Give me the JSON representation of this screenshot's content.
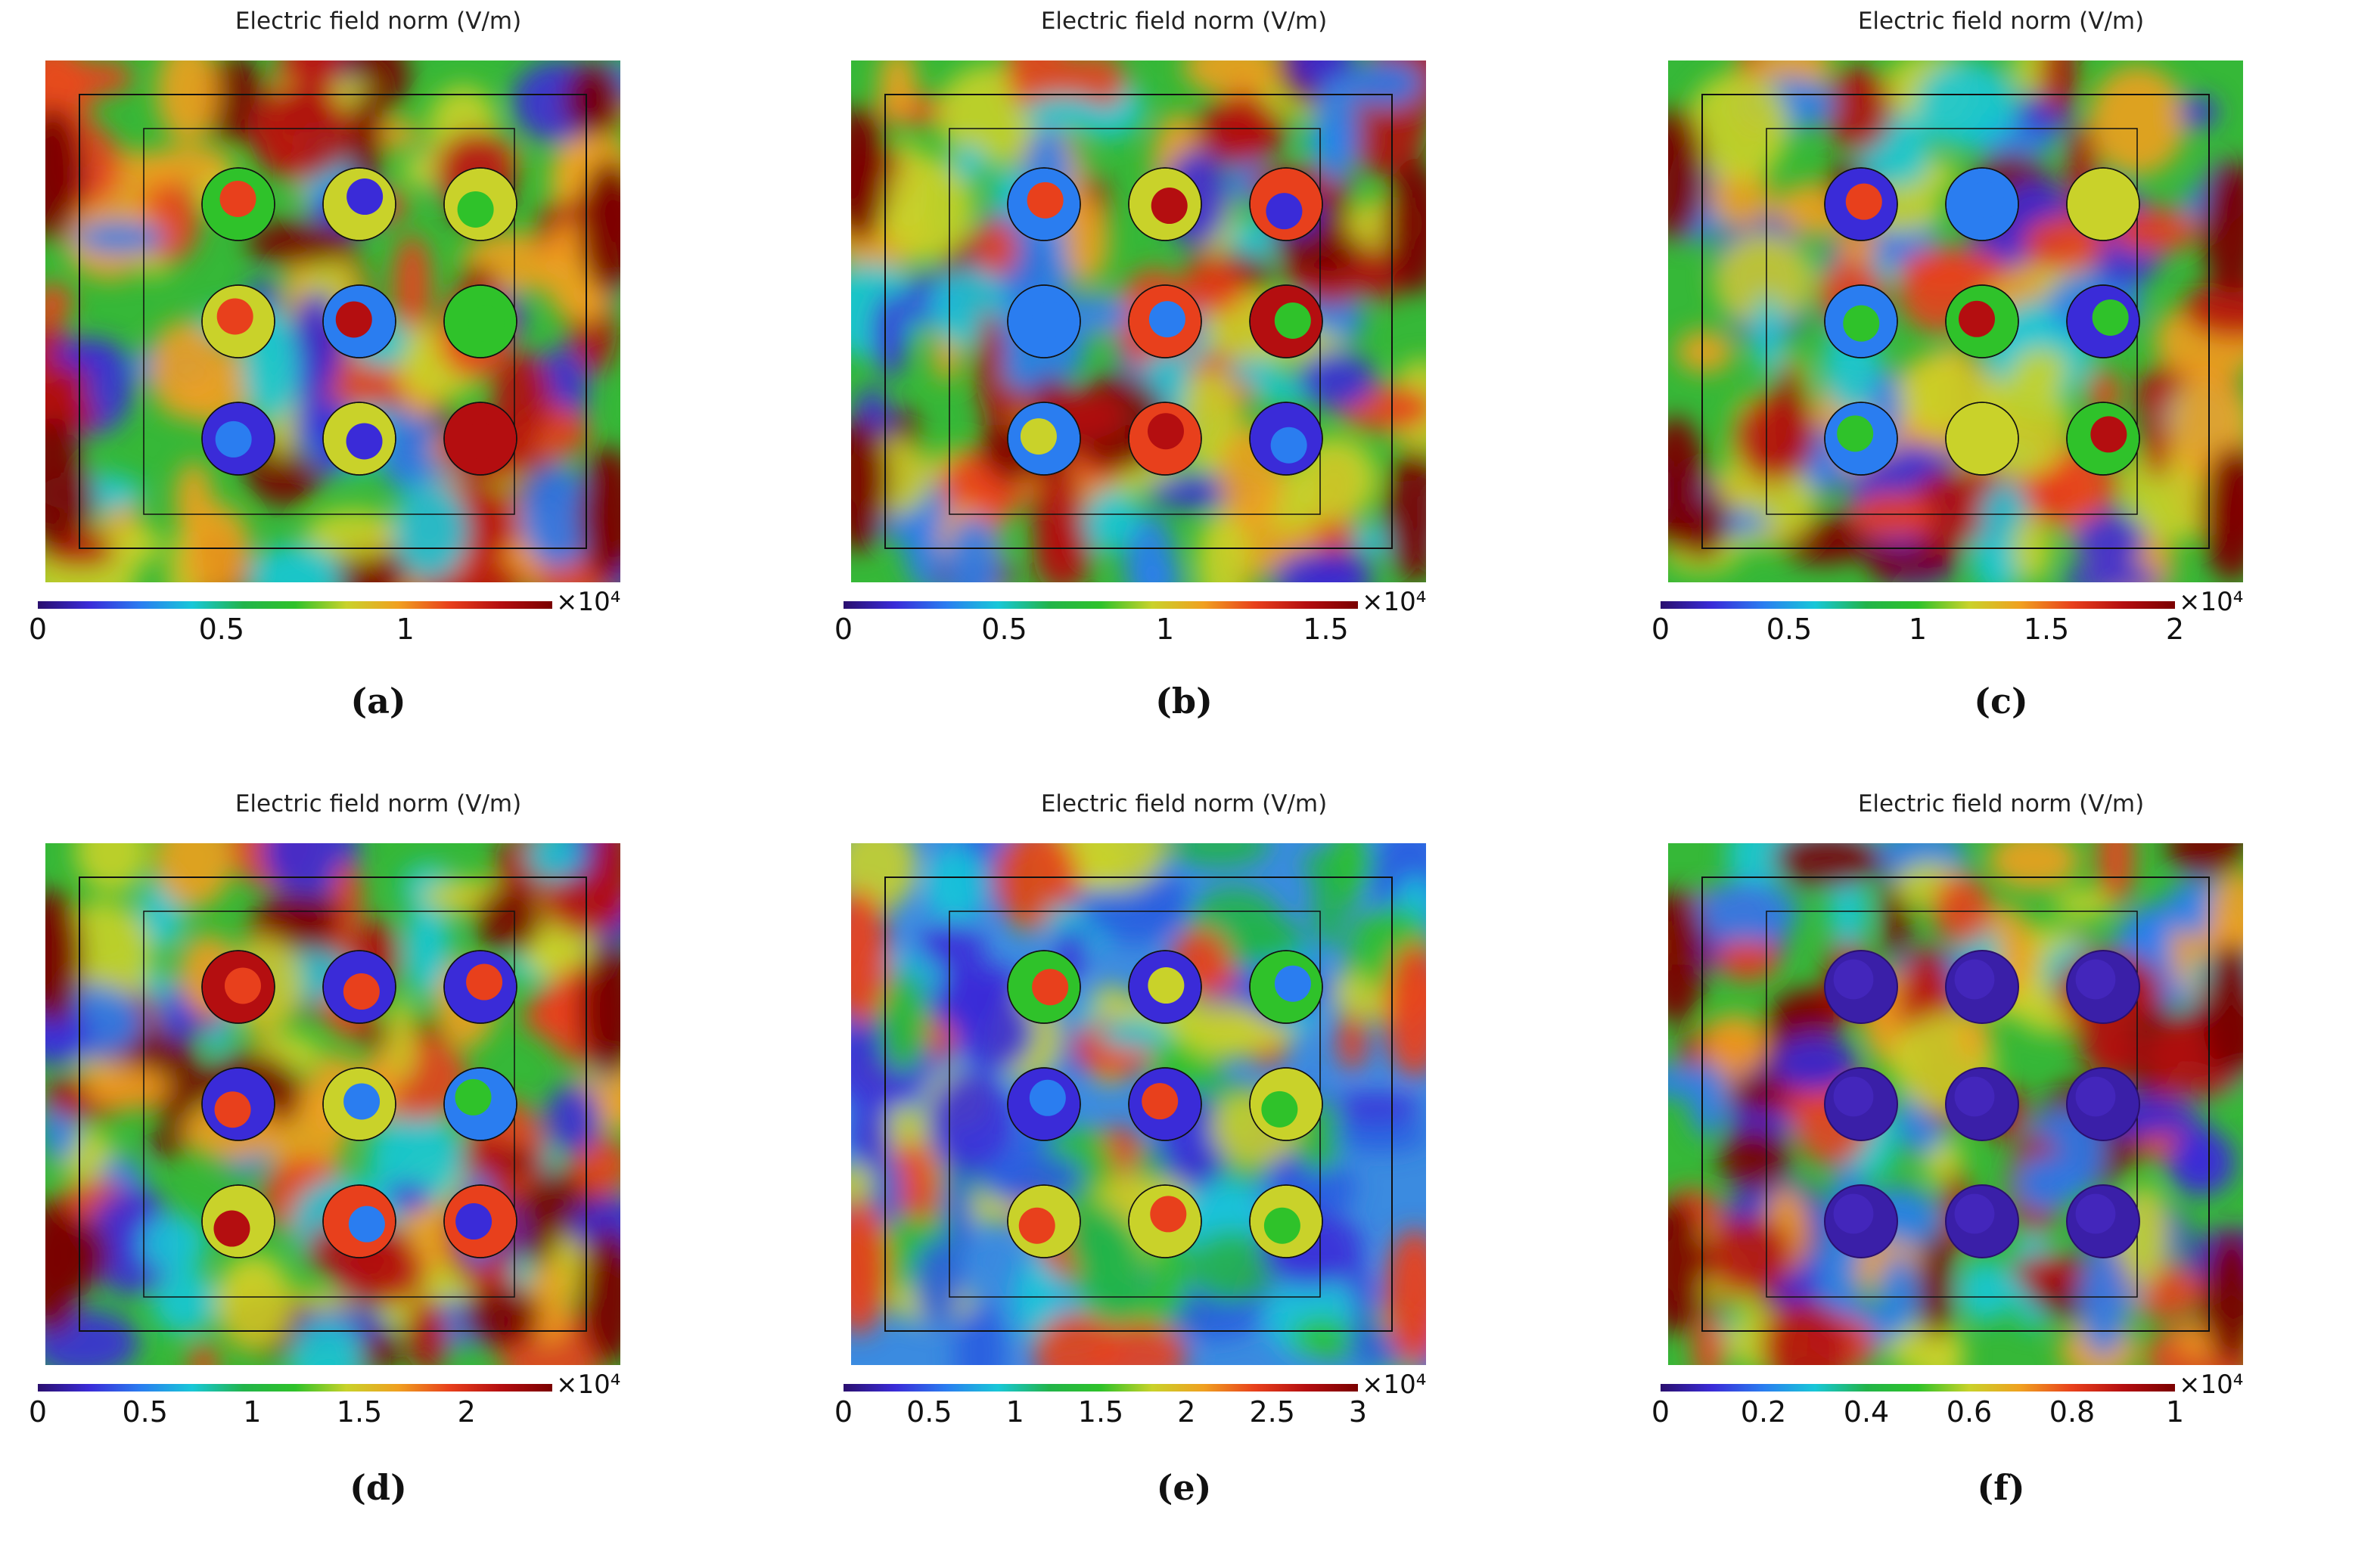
{
  "colors": {
    "scale": [
      "#2a0f6e",
      "#3a2bd8",
      "#2a7df0",
      "#18c7d8",
      "#22b44a",
      "#2fc22a",
      "#c9d22a",
      "#f0a020",
      "#e8401c",
      "#b40e10",
      "#7a0000"
    ]
  },
  "chart_data": [
    {
      "type": "heatmap",
      "id": "a",
      "title": "Electric field norm (V/m)",
      "caption": "(a)",
      "colorbar": {
        "min": 0,
        "max": 1.4,
        "ticks": [
          "0",
          "0.5",
          "1"
        ],
        "multiplier": "×10⁴"
      },
      "rods": 9
    },
    {
      "type": "heatmap",
      "id": "b",
      "title": "Electric field norm (V/m)",
      "caption": "(b)",
      "colorbar": {
        "min": 0,
        "max": 1.6,
        "ticks": [
          "0",
          "0.5",
          "1",
          "1.5"
        ],
        "multiplier": "×10⁴"
      },
      "rods": 9
    },
    {
      "type": "heatmap",
      "id": "c",
      "title": "Electric field norm (V/m)",
      "caption": "(c)",
      "colorbar": {
        "min": 0,
        "max": 2,
        "ticks": [
          "0",
          "0.5",
          "1",
          "1.5",
          "2"
        ],
        "multiplier": "×10⁴"
      },
      "rods": 9
    },
    {
      "type": "heatmap",
      "id": "d",
      "title": "Electric field norm (V/m)",
      "caption": "(d)",
      "colorbar": {
        "min": 0,
        "max": 2.4,
        "ticks": [
          "0",
          "0.5",
          "1",
          "1.5",
          "2"
        ],
        "multiplier": "×10⁴"
      },
      "rods": 9
    },
    {
      "type": "heatmap",
      "id": "e",
      "title": "Electric field norm (V/m)",
      "caption": "(e)",
      "colorbar": {
        "min": 0,
        "max": 3,
        "ticks": [
          "0",
          "0.5",
          "1",
          "1.5",
          "2",
          "2.5",
          "3"
        ],
        "multiplier": "×10⁴"
      },
      "rods": 9
    },
    {
      "type": "heatmap",
      "id": "f",
      "title": "Electric field norm (V/m)",
      "caption": "(f)",
      "colorbar": {
        "min": 0,
        "max": 1,
        "ticks": [
          "0",
          "0.2",
          "0.4",
          "0.6",
          "0.8",
          "1"
        ],
        "multiplier": "×10⁴"
      },
      "rods": 9
    }
  ]
}
